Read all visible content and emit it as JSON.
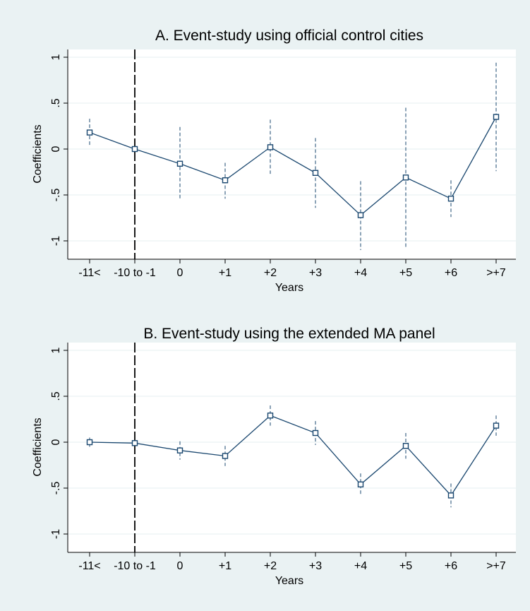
{
  "chart_data": [
    {
      "type": "line",
      "title": "A. Event-study using official control cities",
      "xlabel": "Years",
      "ylabel": "Coefficients",
      "categories": [
        "-11<",
        "-10 to -1",
        "0",
        "+1",
        "+2",
        "+3",
        "+4",
        "+5",
        "+6",
        ">+7"
      ],
      "y_ticks": [
        {
          "value": 1,
          "label": "1"
        },
        {
          "value": 0.5,
          "label": ".5"
        },
        {
          "value": 0,
          "label": "0"
        },
        {
          "value": -0.5,
          "label": "-.5"
        },
        {
          "value": -1,
          "label": "-1"
        }
      ],
      "ylim": [
        -1.1,
        1.1
      ],
      "grid": true,
      "reference_category": "-10 to -1",
      "series": [
        {
          "values": [
            0.18,
            0.0,
            -0.16,
            -0.34,
            0.02,
            -0.26,
            -0.72,
            -0.31,
            -0.54,
            0.35
          ],
          "ci_low": [
            0.03,
            0.0,
            -0.55,
            -0.54,
            -0.27,
            -0.64,
            -1.1,
            -1.07,
            -0.74,
            -0.24
          ],
          "ci_high": [
            0.33,
            0.0,
            0.24,
            -0.15,
            0.32,
            0.12,
            -0.35,
            0.45,
            -0.34,
            0.94
          ]
        }
      ],
      "colors": {
        "line": "#1a476f",
        "ci": "#1a476f",
        "ref_line": "#000000",
        "grid": "#eaf2f3"
      }
    },
    {
      "type": "line",
      "title": "B. Event-study using the extended MA panel",
      "xlabel": "Years",
      "ylabel": "Coefficients",
      "categories": [
        "-11<",
        "-10 to -1",
        "0",
        "+1",
        "+2",
        "+3",
        "+4",
        "+5",
        "+6",
        ">+7"
      ],
      "y_ticks": [
        {
          "value": 1,
          "label": "1"
        },
        {
          "value": 0.5,
          "label": ".5"
        },
        {
          "value": 0,
          "label": "0"
        },
        {
          "value": -0.5,
          "label": "-.5"
        },
        {
          "value": -1,
          "label": "-1"
        }
      ],
      "ylim": [
        -1.1,
        1.1
      ],
      "grid": true,
      "reference_category": "-10 to -1",
      "series": [
        {
          "values": [
            0.0,
            -0.01,
            -0.09,
            -0.15,
            0.29,
            0.1,
            -0.46,
            -0.04,
            -0.58,
            0.18
          ],
          "ci_low": [
            -0.05,
            -0.01,
            -0.19,
            -0.26,
            0.18,
            -0.03,
            -0.58,
            -0.18,
            -0.71,
            0.07
          ],
          "ci_high": [
            0.05,
            -0.01,
            0.01,
            -0.04,
            0.4,
            0.23,
            -0.34,
            0.1,
            -0.45,
            0.29
          ]
        }
      ],
      "colors": {
        "line": "#1a476f",
        "ci": "#1a476f",
        "ref_line": "#000000",
        "grid": "#eaf2f3"
      }
    }
  ]
}
